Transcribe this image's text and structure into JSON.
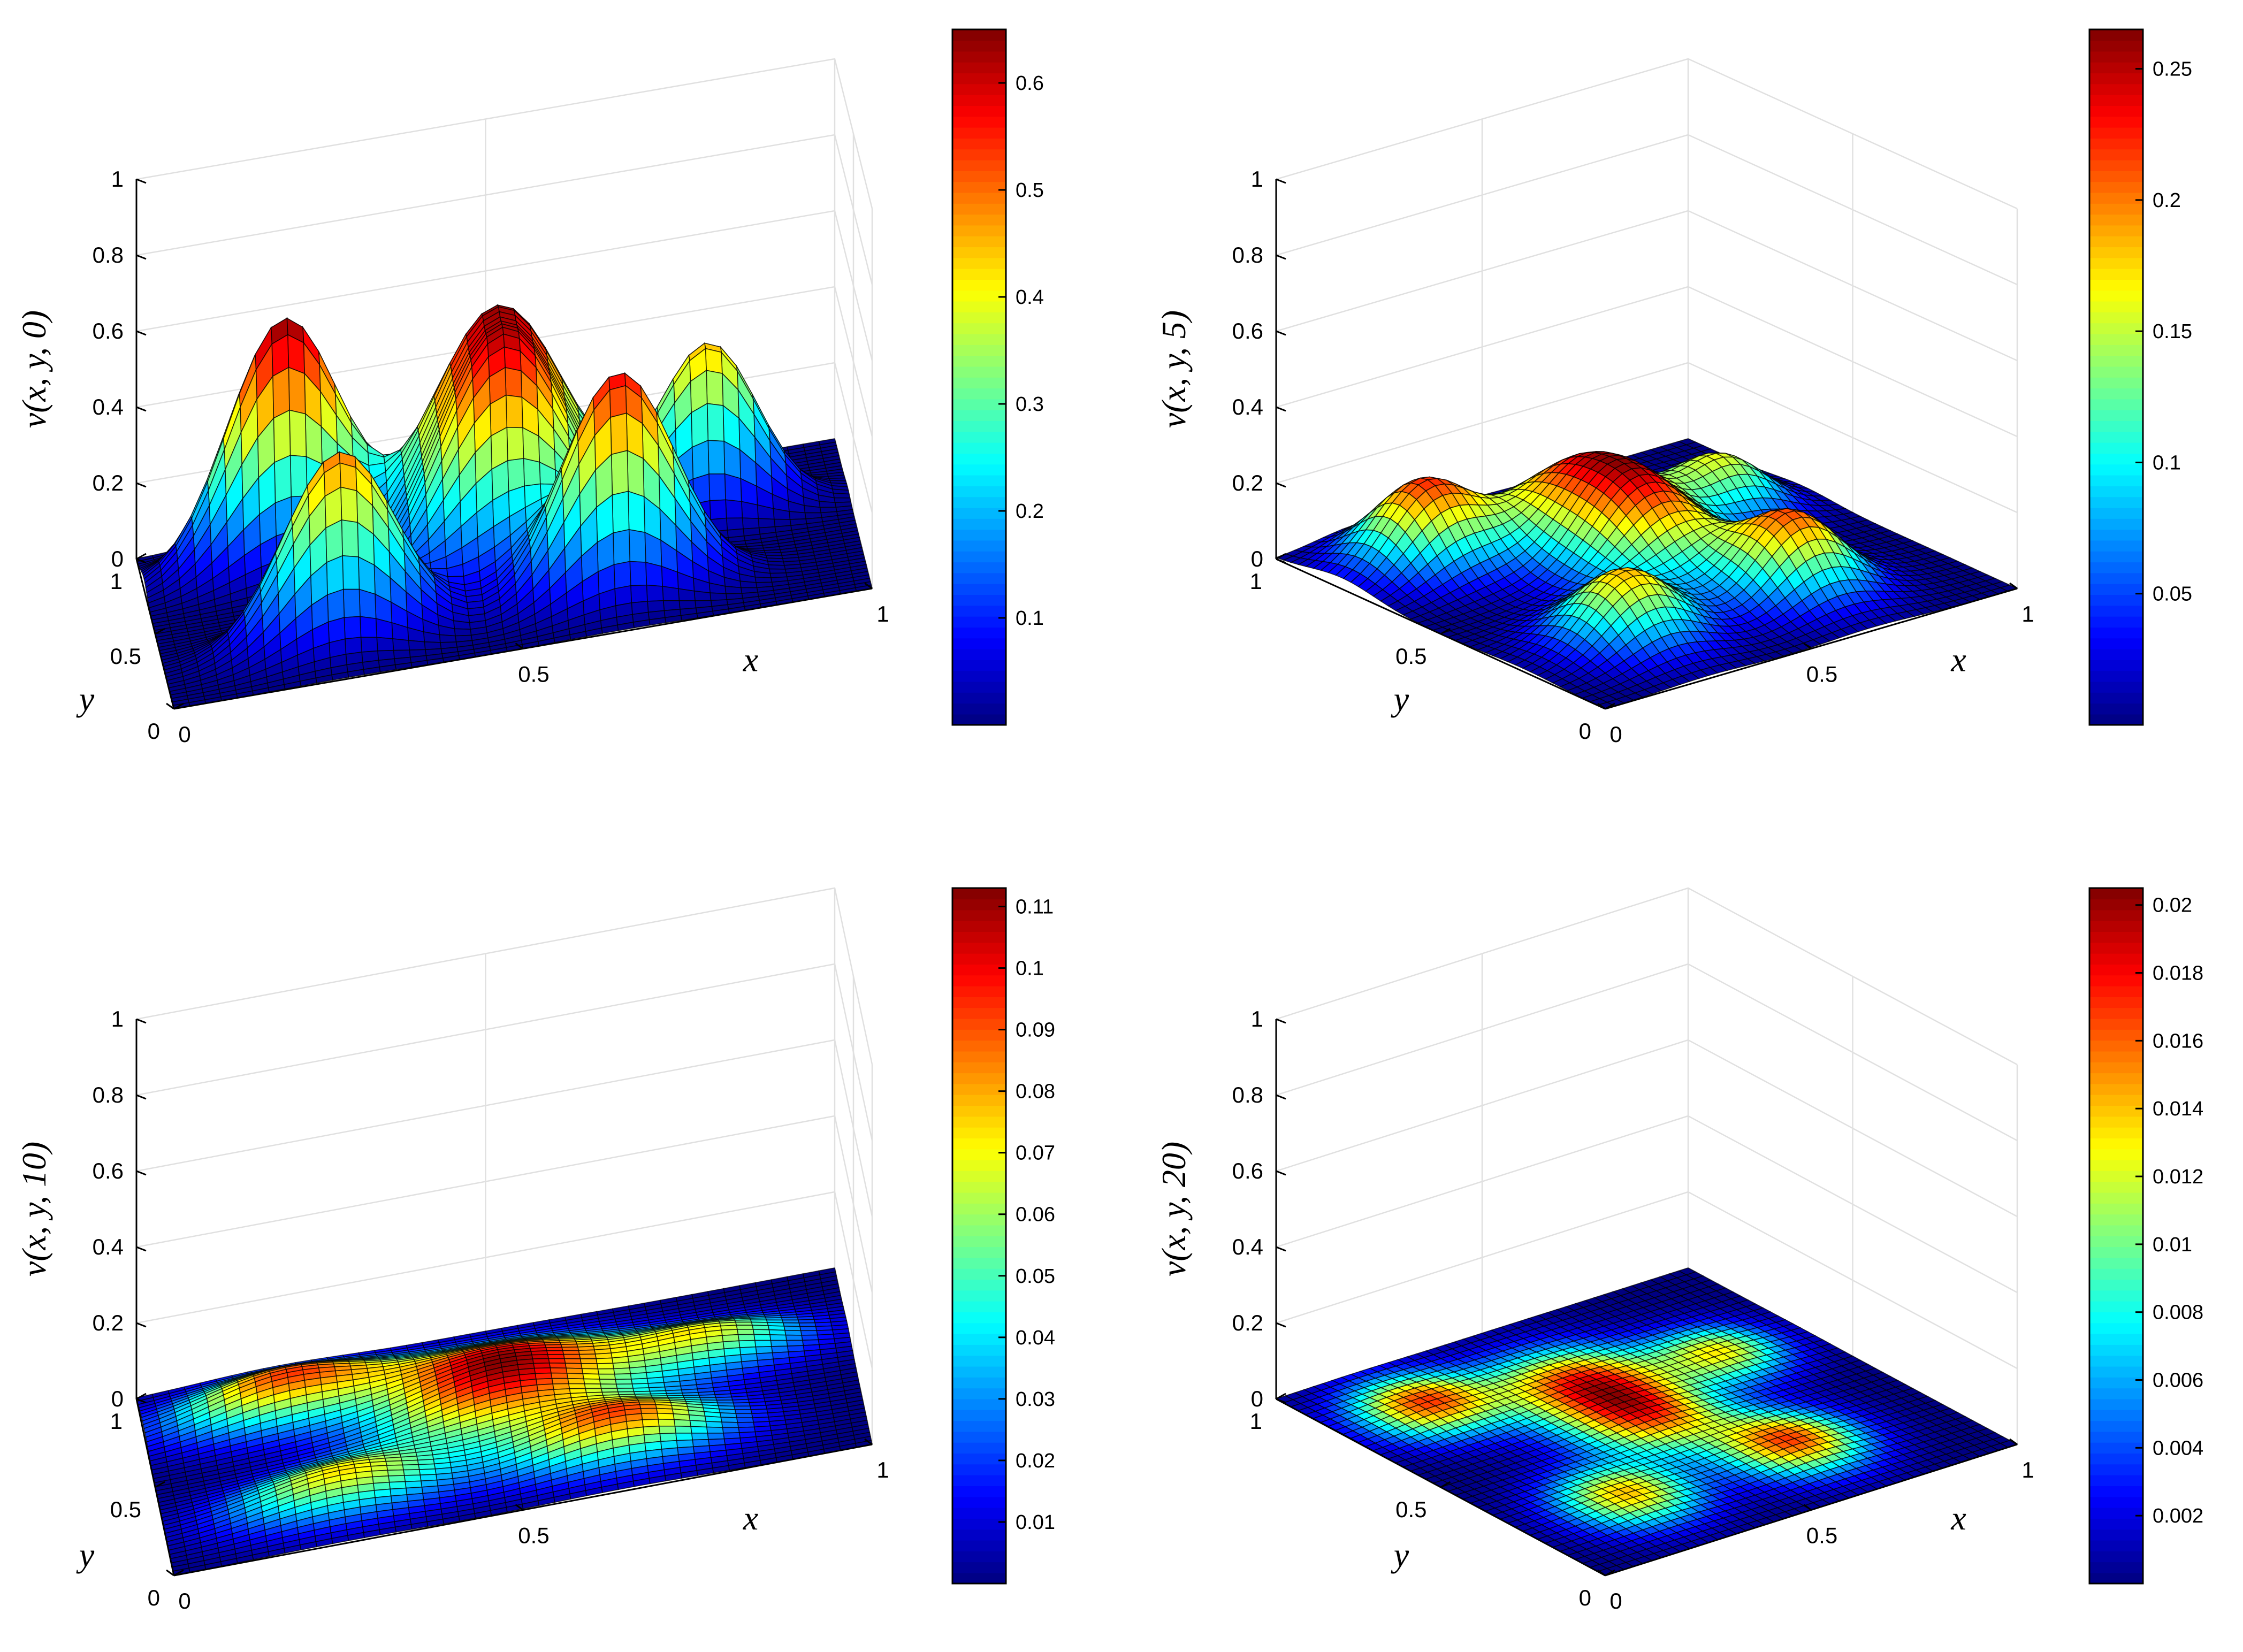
{
  "figure": {
    "colormap": "jet",
    "background": "#ffffff",
    "gridColor": "#e0e0e0",
    "axisColor": "#000000"
  },
  "chart_data": [
    {
      "type": "surface",
      "zlabel": "v(x, y, 0)",
      "xlabel": "x",
      "ylabel": "y",
      "xlim": [
        0,
        1
      ],
      "ylim": [
        0,
        1
      ],
      "zlim": [
        0,
        1
      ],
      "xticks": [
        "0",
        "0.5",
        "1"
      ],
      "yticks": [
        "0",
        "0.5",
        "1"
      ],
      "zticks": [
        "0",
        "0.2",
        "0.4",
        "0.6",
        "0.8",
        "1"
      ],
      "colorbar": {
        "range": [
          0,
          0.65
        ],
        "ticks": [
          "0.1",
          "0.2",
          "0.3",
          "0.4",
          "0.5",
          "0.6"
        ],
        "values": [
          0.1,
          0.2,
          0.3,
          0.4,
          0.5,
          0.6
        ]
      },
      "peak_max": 0.65,
      "bumps": [
        {
          "x": 0.2,
          "y": 0.8,
          "amp": 0.65,
          "sigma": 0.08
        },
        {
          "x": 0.5,
          "y": 0.7,
          "amp": 0.58,
          "sigma": 0.1
        },
        {
          "x": 0.5,
          "y": 0.5,
          "amp": 0.52,
          "sigma": 0.09
        },
        {
          "x": 0.25,
          "y": 0.25,
          "amp": 0.5,
          "sigma": 0.08
        },
        {
          "x": 0.65,
          "y": 0.25,
          "amp": 0.58,
          "sigma": 0.08
        },
        {
          "x": 0.8,
          "y": 0.65,
          "amp": 0.45,
          "sigma": 0.07
        }
      ]
    },
    {
      "type": "surface",
      "zlabel": "v(x, y, 5)",
      "xlabel": "x",
      "ylabel": "y",
      "xlim": [
        0,
        1
      ],
      "ylim": [
        0,
        1
      ],
      "zlim": [
        0,
        1
      ],
      "xticks": [
        "0",
        "0.5",
        "1"
      ],
      "yticks": [
        "0",
        "0.5",
        "1"
      ],
      "zticks": [
        "0",
        "0.2",
        "0.4",
        "0.6",
        "0.8",
        "1"
      ],
      "colorbar": {
        "range": [
          0,
          0.265
        ],
        "ticks": [
          "0.05",
          "0.1",
          "0.15",
          "0.2",
          "0.25"
        ],
        "values": [
          0.05,
          0.1,
          0.15,
          0.2,
          0.25
        ]
      },
      "peak_max": 0.265,
      "bumps": [
        {
          "x": 0.2,
          "y": 0.8,
          "amp": 0.26,
          "sigma": 0.1
        },
        {
          "x": 0.5,
          "y": 0.7,
          "amp": 0.24,
          "sigma": 0.12
        },
        {
          "x": 0.5,
          "y": 0.5,
          "amp": 0.22,
          "sigma": 0.11
        },
        {
          "x": 0.25,
          "y": 0.25,
          "amp": 0.22,
          "sigma": 0.1
        },
        {
          "x": 0.65,
          "y": 0.25,
          "amp": 0.25,
          "sigma": 0.1
        },
        {
          "x": 0.8,
          "y": 0.65,
          "amp": 0.18,
          "sigma": 0.09
        }
      ]
    },
    {
      "type": "surface",
      "zlabel": "v(x, y, 10)",
      "xlabel": "x",
      "ylabel": "y",
      "xlim": [
        0,
        1
      ],
      "ylim": [
        0,
        1
      ],
      "zlim": [
        0,
        1
      ],
      "xticks": [
        "0",
        "0.5",
        "1"
      ],
      "yticks": [
        "0",
        "0.5",
        "1"
      ],
      "zticks": [
        "0",
        "0.2",
        "0.4",
        "0.6",
        "0.8",
        "1"
      ],
      "colorbar": {
        "range": [
          0,
          0.113
        ],
        "ticks": [
          "0.01",
          "0.02",
          "0.03",
          "0.04",
          "0.05",
          "0.06",
          "0.07",
          "0.08",
          "0.09",
          "0.1",
          "0.11"
        ],
        "values": [
          0.01,
          0.02,
          0.03,
          0.04,
          0.05,
          0.06,
          0.07,
          0.08,
          0.09,
          0.1,
          0.11
        ]
      },
      "peak_max": 0.113,
      "bumps": [
        {
          "x": 0.2,
          "y": 0.8,
          "amp": 0.11,
          "sigma": 0.11
        },
        {
          "x": 0.5,
          "y": 0.7,
          "amp": 0.1,
          "sigma": 0.13
        },
        {
          "x": 0.5,
          "y": 0.5,
          "amp": 0.09,
          "sigma": 0.12
        },
        {
          "x": 0.25,
          "y": 0.25,
          "amp": 0.09,
          "sigma": 0.11
        },
        {
          "x": 0.65,
          "y": 0.25,
          "amp": 0.11,
          "sigma": 0.11
        },
        {
          "x": 0.8,
          "y": 0.65,
          "amp": 0.08,
          "sigma": 0.1
        }
      ]
    },
    {
      "type": "surface",
      "zlabel": "v(x, y, 20)",
      "xlabel": "x",
      "ylabel": "y",
      "xlim": [
        0,
        1
      ],
      "ylim": [
        0,
        1
      ],
      "zlim": [
        0,
        1
      ],
      "xticks": [
        "0",
        "0.5",
        "1"
      ],
      "yticks": [
        "0",
        "0.5",
        "1"
      ],
      "zticks": [
        "0",
        "0.2",
        "0.4",
        "0.6",
        "0.8",
        "1"
      ],
      "colorbar": {
        "range": [
          0,
          0.0205
        ],
        "ticks": [
          "0.002",
          "0.004",
          "0.006",
          "0.008",
          "0.01",
          "0.012",
          "0.014",
          "0.016",
          "0.018",
          "0.02"
        ],
        "values": [
          0.002,
          0.004,
          0.006,
          0.008,
          0.01,
          0.012,
          0.014,
          0.016,
          0.018,
          0.02
        ]
      },
      "peak_max": 0.0205,
      "bumps": [
        {
          "x": 0.2,
          "y": 0.8,
          "amp": 0.02,
          "sigma": 0.1
        },
        {
          "x": 0.5,
          "y": 0.7,
          "amp": 0.019,
          "sigma": 0.12
        },
        {
          "x": 0.5,
          "y": 0.5,
          "amp": 0.017,
          "sigma": 0.11
        },
        {
          "x": 0.25,
          "y": 0.25,
          "amp": 0.017,
          "sigma": 0.1
        },
        {
          "x": 0.65,
          "y": 0.25,
          "amp": 0.02,
          "sigma": 0.1
        },
        {
          "x": 0.8,
          "y": 0.65,
          "amp": 0.015,
          "sigma": 0.09
        }
      ]
    }
  ]
}
